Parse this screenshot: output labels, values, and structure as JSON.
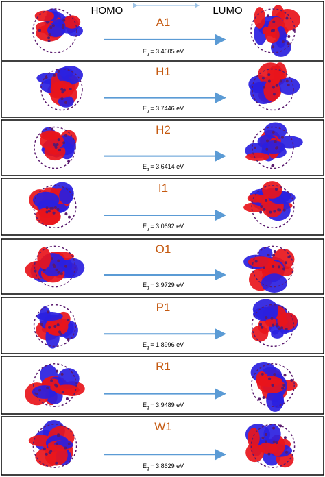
{
  "header": {
    "left": "HOMO",
    "right": "LUMO"
  },
  "gap_symbol": "E",
  "gap_subscript": "g",
  "panels": [
    {
      "label": "A1",
      "gap": "= 3.4605 eV"
    },
    {
      "label": "H1",
      "gap": "= 3.7446 eV"
    },
    {
      "label": "H2",
      "gap": "= 3.6414 eV"
    },
    {
      "label": "I1",
      "gap": "= 3.0692 eV"
    },
    {
      "label": "O1",
      "gap": "= 3.9729 eV"
    },
    {
      "label": "P1",
      "gap": "= 1.8996 eV"
    },
    {
      "label": "R1",
      "gap": "= 3.9489 eV"
    },
    {
      "label": "W1",
      "gap": "= 3.8629 eV"
    }
  ]
}
